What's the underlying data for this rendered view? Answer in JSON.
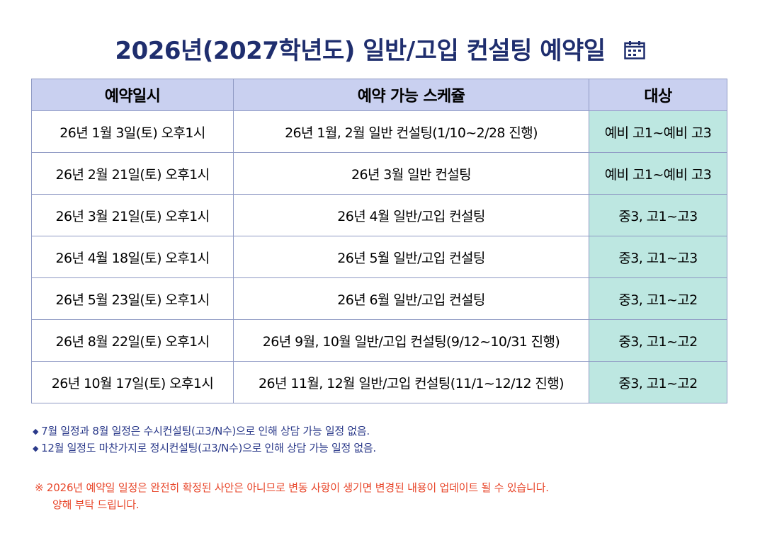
{
  "title": "2026년(2027학년도) 일반/고입 컨설팅 예약일",
  "table": {
    "headers": [
      "예약일시",
      "예약 가능 스케쥴",
      "대상"
    ],
    "rows": [
      {
        "date": "26년 1월 3일(토) 오후1시",
        "schedule": "26년 1월, 2월 일반 컨설팅(1/10~2/28 진행)",
        "target": "예비 고1~예비 고3"
      },
      {
        "date": "26년 2월 21일(토) 오후1시",
        "schedule": "26년 3월 일반 컨설팅",
        "target": "예비 고1~예비 고3"
      },
      {
        "date": "26년 3월 21일(토) 오후1시",
        "schedule": "26년 4월 일반/고입 컨설팅",
        "target": "중3, 고1~고3"
      },
      {
        "date": "26년 4월 18일(토) 오후1시",
        "schedule": "26년 5월 일반/고입 컨설팅",
        "target": "중3, 고1~고3"
      },
      {
        "date": "26년 5월 23일(토) 오후1시",
        "schedule": "26년 6월 일반/고입 컨설팅",
        "target": "중3, 고1~고2"
      },
      {
        "date": "26년 8월 22일(토) 오후1시",
        "schedule": "26년 9월, 10월 일반/고입 컨설팅(9/12~10/31 진행)",
        "target": "중3, 고1~고2"
      },
      {
        "date": "26년 10월 17일(토) 오후1시",
        "schedule": "26년 11월, 12월 일반/고입 컨설팅(11/1~12/12 진행)",
        "target": "중3, 고1~고2"
      }
    ]
  },
  "notes": [
    "7월 일정과 8월 일정은 수시컨설팅(고3/N수)으로 인해 상담 가능 일정 없음.",
    "12월 일정도 마찬가지로 정시컨설팅(고3/N수)으로 인해 상담 가능 일정 없음."
  ],
  "warning": {
    "line1": "※ 2026년 예약일 일정은 완전히 확정된 사안은 아니므로 변동 사항이 생기면 변경된 내용이 업데이트 될 수 있습니다.",
    "line2": "양해 부탁 드립니다."
  },
  "colors": {
    "title": "#1f2e6e",
    "header_bg": "#c9d0f0",
    "target_bg": "#bde7e1",
    "notes": "#2b3a8a",
    "warning": "#e8462a"
  },
  "icons": {
    "title_icon": "calendar-icon"
  }
}
